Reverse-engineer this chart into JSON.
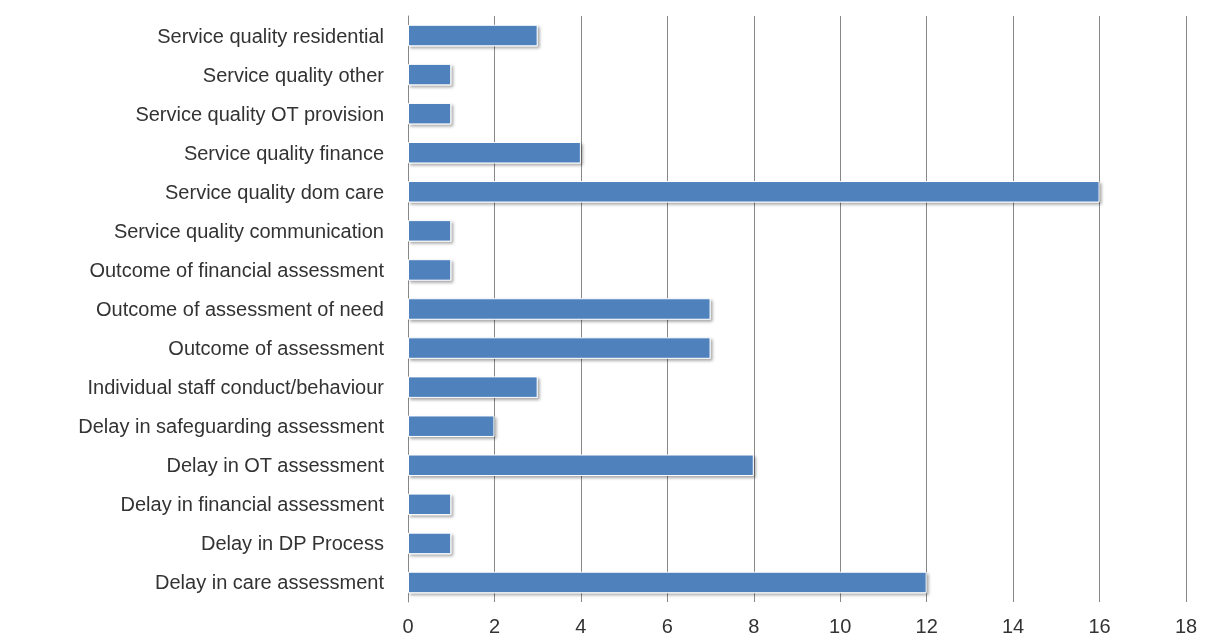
{
  "chart_data": {
    "type": "bar",
    "orientation": "horizontal",
    "categories": [
      "Service quality residential",
      "Service quality other",
      "Service quality OT provision",
      "Service quality finance",
      "Service quality dom care",
      "Service quality communication",
      "Outcome of financial assessment",
      "Outcome of assessment of need",
      "Outcome of assessment",
      "Individual staff conduct/behaviour",
      "Delay in safeguarding assessment",
      "Delay in OT assessment",
      "Delay in financial assessment",
      "Delay in DP Process",
      "Delay in care assessment"
    ],
    "values": [
      3,
      1,
      1,
      4,
      16,
      1,
      1,
      7,
      7,
      3,
      2,
      8,
      1,
      1,
      12
    ],
    "color": "#4f81bd",
    "xlim": [
      0,
      18
    ],
    "xticks": [
      0,
      2,
      4,
      6,
      8,
      10,
      12,
      14,
      16,
      18
    ],
    "grid": "x"
  }
}
